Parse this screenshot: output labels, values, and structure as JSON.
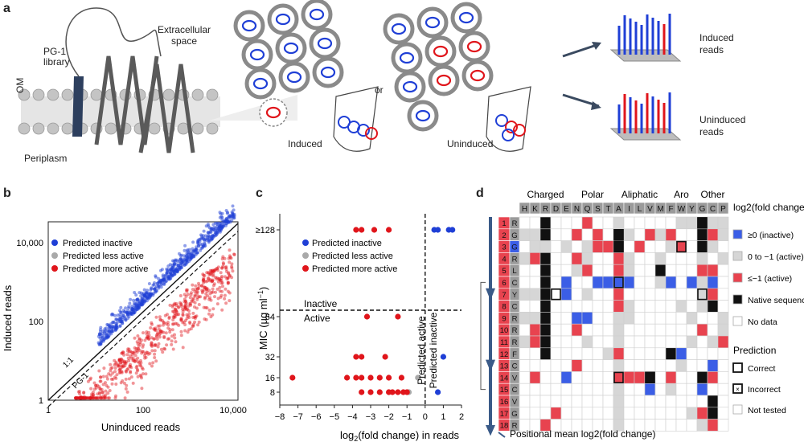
{
  "panels": {
    "a": "a",
    "b": "b",
    "c": "c",
    "d": "d"
  },
  "panel_a": {
    "library": "PG-1\nlibrary",
    "extracellular": "Extracellular\nspace",
    "om": "OM",
    "periplasm": "Periplasm",
    "or": "or",
    "induced": "Induced",
    "uninduced": "Uninduced",
    "induced_reads": "Induced\nreads",
    "uninduced_reads": "Uninduced\nreads",
    "colors": {
      "blue": "#1f3fd6",
      "red": "#e0151b",
      "gray": "#7d7d7d"
    }
  },
  "chart_data": [
    {
      "id": "b",
      "type": "scatter",
      "xlabel": "Uninduced reads",
      "ylabel": "Induced reads",
      "xscale": "log",
      "yscale": "log",
      "xlim": [
        1,
        15000
      ],
      "ylim": [
        1,
        15000
      ],
      "x_ticks": [
        "1",
        "100",
        "10,000"
      ],
      "y_ticks": [
        "1",
        "100",
        "10,000"
      ],
      "legend_position": "top-left",
      "series": [
        {
          "name": "Predicted inactive",
          "color": "#1f3fd6"
        },
        {
          "name": "Predicted less active",
          "color": "#a9a9a9"
        },
        {
          "name": "Predicted more active",
          "color": "#e0151b"
        }
      ],
      "annotations": [
        "1:1",
        "PG-1"
      ]
    },
    {
      "id": "c",
      "type": "scatter",
      "xlabel": "log2(fold change) in reads",
      "ylabel": "MIC (µg ml−1)",
      "xlim": [
        -8,
        2
      ],
      "x_ticks": [
        "−8",
        "−7",
        "−6",
        "−5",
        "−4",
        "−3",
        "−2",
        "−1",
        "0",
        "1",
        "2"
      ],
      "y_ticks": [
        "8",
        "16",
        "32",
        "64",
        "≥128"
      ],
      "legend_position": "top-left",
      "threshold_labels": [
        "Inactive",
        "Active"
      ],
      "vertical_labels": [
        "Predicted active",
        "Predicted inactive"
      ],
      "series": [
        {
          "name": "Predicted inactive",
          "color": "#1f3fd6",
          "points": [
            [
              0.5,
              128
            ],
            [
              0.7,
              128
            ],
            [
              1.3,
              128
            ],
            [
              1.5,
              128
            ],
            [
              1.0,
              32
            ],
            [
              0.7,
              8
            ]
          ]
        },
        {
          "name": "Predicted less active",
          "color": "#a9a9a9",
          "points": [
            [
              -0.4,
              16
            ],
            [
              -0.9,
              8
            ]
          ]
        },
        {
          "name": "Predicted more active",
          "color": "#e0151b",
          "points": [
            [
              -3.8,
              128
            ],
            [
              -3.5,
              128
            ],
            [
              -2.8,
              128
            ],
            [
              -2.0,
              128
            ],
            [
              -3.2,
              64
            ],
            [
              -1.5,
              64
            ],
            [
              -7.3,
              16
            ],
            [
              -4.3,
              16
            ],
            [
              -3.8,
              16
            ],
            [
              -3.5,
              16
            ],
            [
              -3.0,
              16
            ],
            [
              -2.5,
              16
            ],
            [
              -2.0,
              16
            ],
            [
              -1.3,
              16
            ],
            [
              -3.8,
              32
            ],
            [
              -3.5,
              32
            ],
            [
              -2.2,
              32
            ],
            [
              -3.5,
              8
            ],
            [
              -3.0,
              8
            ],
            [
              -2.5,
              8
            ],
            [
              -2.0,
              8
            ],
            [
              -1.8,
              8
            ],
            [
              -1.5,
              8
            ],
            [
              -1.2,
              8
            ],
            [
              -1.0,
              8
            ]
          ]
        }
      ]
    },
    {
      "id": "d",
      "type": "heatmap",
      "groups": [
        {
          "name": "Charged",
          "span": 5
        },
        {
          "name": "Polar",
          "span": 4
        },
        {
          "name": "Aliphatic",
          "span": 5
        },
        {
          "name": "Aro",
          "span": 3
        },
        {
          "name": "Other",
          "span": 3
        }
      ],
      "columns": [
        "H",
        "K",
        "R",
        "D",
        "E",
        "N",
        "Q",
        "S",
        "T",
        "A",
        "I",
        "L",
        "V",
        "M",
        "F",
        "W",
        "Y",
        "G",
        "C",
        "P"
      ],
      "rows": [
        {
          "index": "1",
          "aa": "R"
        },
        {
          "index": "2",
          "aa": "G"
        },
        {
          "index": "3",
          "aa": "G"
        },
        {
          "index": "4",
          "aa": "R"
        },
        {
          "index": "5",
          "aa": "L"
        },
        {
          "index": "6",
          "aa": "C"
        },
        {
          "index": "7",
          "aa": "Y"
        },
        {
          "index": "8",
          "aa": "C"
        },
        {
          "index": "9",
          "aa": "R"
        },
        {
          "index": "10",
          "aa": "R"
        },
        {
          "index": "11",
          "aa": "R"
        },
        {
          "index": "12",
          "aa": "F"
        },
        {
          "index": "13",
          "aa": "C"
        },
        {
          "index": "14",
          "aa": "V"
        },
        {
          "index": "15",
          "aa": "C"
        },
        {
          "index": "16",
          "aa": "V"
        },
        {
          "index": "17",
          "aa": "G"
        },
        {
          "index": "18",
          "aa": "R"
        }
      ],
      "cell_codes": {
        "r": "≤−1 (active)",
        "l": "0 to −1 (active)",
        "b": "≥0 (inactive)",
        "k": "Native sequence",
        "w": "No data"
      },
      "cells": [
        "wwkwwwrwwlwwwwwllkll",
        "llkwwrwrwklwrlrwwkrl",
        "wllwlwlrrkwrwwlrwklw",
        "lrkwwrlwwrlwwlwwwlwl",
        "wwkwwlrwwrlwwkwwwrrw",
        "wwkwbwwbbbbwwlbwblbw",
        "llkwbwlwwrwwwwwwwlrw",
        "wwkwwwwwwrlwwwwlwlkw",
        "llkwwbbwwllwwwwwlwwl",
        "wrkwwrwwwlwwwwwwwrwl",
        "lrkwwwlwwlwwwwwwlwlr",
        "wwkwwwwwlrwwwwkbwwww",
        "wwwwwrwwwlwwwwwlwwbw",
        "wrwwbwwwwrrrkwrwwkrw",
        "wwwwwwwwwlwwbwlwwbww",
        "wwwwwwwwwlwwwwwwwwkw",
        "wwwrwwwwwlwwwwwwlrkw",
        "wwrwwwwwwlwwwwwwwlrw"
      ],
      "legend_title": "log2(fold change)",
      "legend_items": [
        "≥0 (inactive)",
        "0 to −1 (active)",
        "≤−1 (active)",
        "Native sequence",
        "No data"
      ],
      "prediction_title": "Prediction",
      "prediction_items": [
        "Correct",
        "Incorrect",
        "Not tested"
      ],
      "footer": "Positional mean log2(fold change)",
      "colors": {
        "r": "#e8434f",
        "l": "#d6d6d6",
        "b": "#3b5ee6",
        "k": "#111111",
        "w": "#ffffff"
      }
    }
  ]
}
